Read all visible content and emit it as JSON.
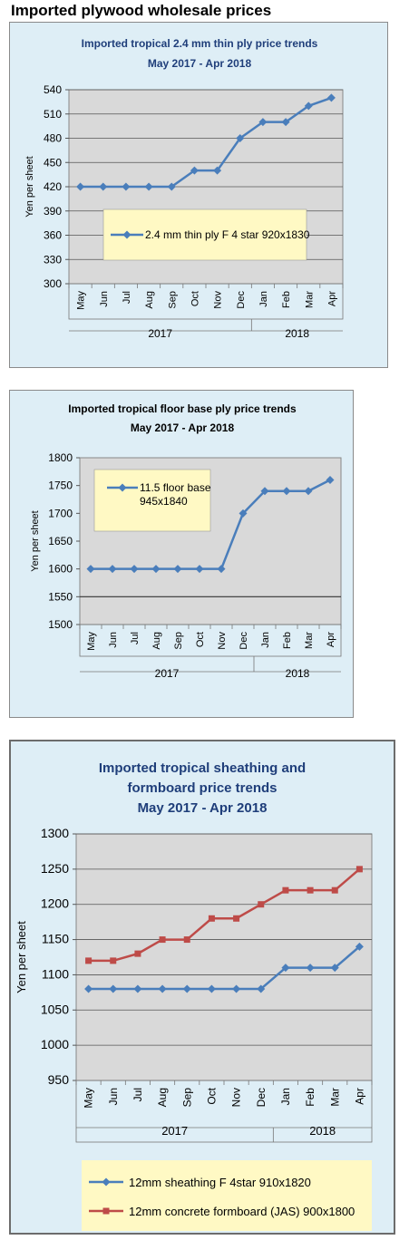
{
  "page": {
    "title": "Imported plywood wholesale prices"
  },
  "chart_data": [
    {
      "type": "line",
      "title": [
        "Imported tropical 2.4 mm thin ply price trends",
        "May 2017 -  Apr 2018"
      ],
      "ylabel": "Yen per sheet",
      "ylim": [
        300,
        540
      ],
      "yticks": [
        300,
        330,
        360,
        390,
        420,
        450,
        480,
        510,
        540
      ],
      "categories": [
        "May",
        "Jun",
        "Jul",
        "Aug",
        "Sep",
        "Oct",
        "Nov",
        "Dec",
        "Jan",
        "Feb",
        "Mar",
        "Apr"
      ],
      "years": [
        {
          "label": "2017",
          "span": 8
        },
        {
          "label": "2018",
          "span": 4
        }
      ],
      "grid": true,
      "legend": "center-left",
      "series": [
        {
          "name": "2.4 mm thin ply F 4 star 920x1830",
          "color": "#4a7ebb",
          "marker": "diamond",
          "values": [
            420,
            420,
            420,
            420,
            420,
            440,
            440,
            480,
            500,
            500,
            520,
            530
          ]
        }
      ]
    },
    {
      "type": "line",
      "title": [
        "Imported tropical floor base ply price trends",
        "May 2017 -  Apr 2018"
      ],
      "ylabel": "Yen per sheet",
      "ylim": [
        1500,
        1800
      ],
      "yticks": [
        1500,
        1550,
        1600,
        1650,
        1700,
        1750,
        1800
      ],
      "categories": [
        "May",
        "Jun",
        "Jul",
        "Aug",
        "Sep",
        "Oct",
        "Nov",
        "Dec",
        "Jan",
        "Feb",
        "Mar",
        "Apr"
      ],
      "years": [
        {
          "label": "2017",
          "span": 8
        },
        {
          "label": "2018",
          "span": 4
        }
      ],
      "grid": false,
      "baseline": 1550,
      "legend": "top-left",
      "series": [
        {
          "name": "11.5 floor base 945x1840",
          "color": "#4a7ebb",
          "marker": "diamond",
          "values": [
            1600,
            1600,
            1600,
            1600,
            1600,
            1600,
            1600,
            1700,
            1740,
            1740,
            1740,
            1760
          ]
        }
      ]
    },
    {
      "type": "line",
      "title": [
        "Imported tropical sheathing and",
        "formboard price trends",
        "May 2017 -  Apr 2018"
      ],
      "ylabel": "Yen per sheet",
      "ylim": [
        950,
        1300
      ],
      "yticks": [
        950,
        1000,
        1050,
        1100,
        1150,
        1200,
        1250,
        1300
      ],
      "categories": [
        "May",
        "Jun",
        "Jul",
        "Aug",
        "Sep",
        "Oct",
        "Nov",
        "Dec",
        "Jan",
        "Feb",
        "Mar",
        "Apr"
      ],
      "years": [
        {
          "label": "2017",
          "span": 8
        },
        {
          "label": "2018",
          "span": 4
        }
      ],
      "grid": true,
      "legend": "bottom",
      "series": [
        {
          "name": "12mm sheathing F 4star 910x1820",
          "color": "#4a7ebb",
          "marker": "diamond",
          "values": [
            1080,
            1080,
            1080,
            1080,
            1080,
            1080,
            1080,
            1080,
            1110,
            1110,
            1110,
            1140
          ]
        },
        {
          "name": "12mm concrete formboard (JAS) 900x1800",
          "color": "#be4b48",
          "marker": "square",
          "values": [
            1120,
            1120,
            1130,
            1150,
            1150,
            1180,
            1180,
            1200,
            1220,
            1220,
            1220,
            1250
          ]
        }
      ]
    }
  ]
}
